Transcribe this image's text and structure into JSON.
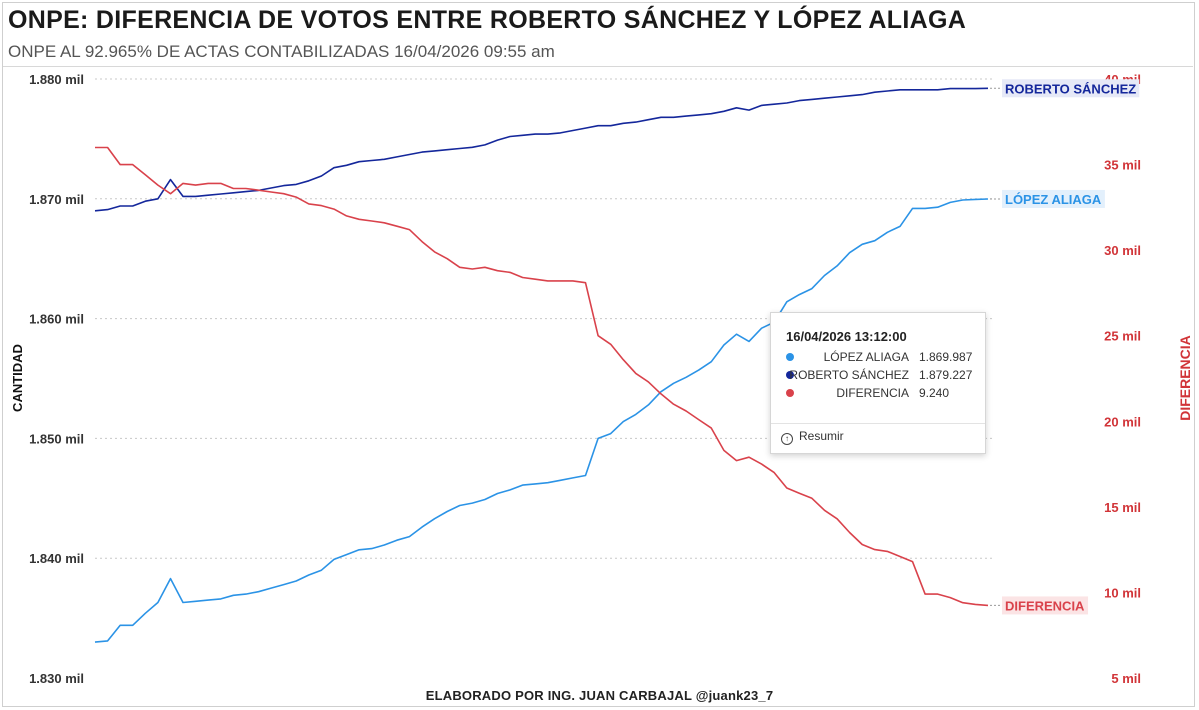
{
  "header": {
    "title": "ONPE: DIFERENCIA DE VOTOS ENTRE ROBERTO SÁNCHEZ Y LÓPEZ ALIAGA",
    "subtitle": "ONPE AL 92.965% DE ACTAS CONTABILIZADAS 16/04/2026 09:55 am"
  },
  "footer": {
    "credit": "ELABORADO POR ING. JUAN CARBAJAL @juank23_7"
  },
  "colors": {
    "sanchez": "#14279b",
    "lopez": "#2b93e6",
    "diferencia": "#d9424b",
    "left_axis": "#333333",
    "right_axis": "#d13438"
  },
  "tooltip": {
    "title": "16/04/2026 13:12:00",
    "rows": [
      {
        "label": "LÓPEZ ALIAGA",
        "value": "1.869.987"
      },
      {
        "label": "ROBERTO SÁNCHEZ",
        "value": "1.879.227"
      },
      {
        "label": "DIFERENCIA",
        "value": "9.240"
      }
    ],
    "action_label": "Resumir"
  },
  "chart_data": {
    "type": "line",
    "title": "ONPE: DIFERENCIA DE VOTOS ENTRE ROBERTO SÁNCHEZ Y LÓPEZ ALIAGA",
    "ylabel": "CANTIDAD",
    "ylabel_right": "DIFERENCIA",
    "ylim": [
      1830000,
      1880000
    ],
    "ylim_right": [
      5000,
      40000
    ],
    "yticks": [
      "1.830 mil",
      "1.840 mil",
      "1.850 mil",
      "1.860 mil",
      "1.870 mil",
      "1.880 mil"
    ],
    "yticks_right": [
      "5 mil",
      "10 mil",
      "15 mil",
      "20 mil",
      "25 mil",
      "30 mil",
      "35 mil",
      "40 mil"
    ],
    "legend_position": "end-of-line labels",
    "series": [
      {
        "name": "ROBERTO SÁNCHEZ",
        "axis": "left",
        "values": [
          1869000,
          1869100,
          1869400,
          1869400,
          1869800,
          1870000,
          1871600,
          1870200,
          1870200,
          1870300,
          1870400,
          1870500,
          1870600,
          1870700,
          1870900,
          1871100,
          1871200,
          1871500,
          1871900,
          1872600,
          1872800,
          1873100,
          1873200,
          1873300,
          1873500,
          1873700,
          1873900,
          1874000,
          1874100,
          1874200,
          1874300,
          1874500,
          1874900,
          1875200,
          1875300,
          1875400,
          1875400,
          1875500,
          1875700,
          1875900,
          1876100,
          1876100,
          1876300,
          1876400,
          1876600,
          1876800,
          1876800,
          1876900,
          1877000,
          1877100,
          1877300,
          1877600,
          1877400,
          1877800,
          1877900,
          1878000,
          1878200,
          1878300,
          1878400,
          1878500,
          1878600,
          1878700,
          1878900,
          1879000,
          1879100,
          1879100,
          1879100,
          1879100,
          1879200,
          1879200,
          1879200,
          1879227
        ]
      },
      {
        "name": "LÓPEZ ALIAGA",
        "axis": "left",
        "values": [
          1833000,
          1833100,
          1834400,
          1834400,
          1835400,
          1836300,
          1838300,
          1836300,
          1836400,
          1836500,
          1836600,
          1836900,
          1837000,
          1837200,
          1837500,
          1837800,
          1838100,
          1838600,
          1839000,
          1839900,
          1840300,
          1840700,
          1840800,
          1841100,
          1841500,
          1841800,
          1842600,
          1843300,
          1843900,
          1844400,
          1844600,
          1844900,
          1845400,
          1845700,
          1846100,
          1846200,
          1846300,
          1846500,
          1846700,
          1846900,
          1850000,
          1850400,
          1851400,
          1852000,
          1852800,
          1853900,
          1854600,
          1855100,
          1855700,
          1856400,
          1857800,
          1858700,
          1858100,
          1859200,
          1859700,
          1861400,
          1862000,
          1862500,
          1863600,
          1864400,
          1865500,
          1866200,
          1866500,
          1867200,
          1867700,
          1869200,
          1869200,
          1869300,
          1869700,
          1869900,
          1869950,
          1869987
        ]
      },
      {
        "name": "DIFERENCIA",
        "axis": "right",
        "values": [
          36000,
          36000,
          35000,
          35000,
          34400,
          33800,
          33300,
          33900,
          33800,
          33900,
          33900,
          33600,
          33600,
          33500,
          33400,
          33300,
          33100,
          32700,
          32600,
          32400,
          32000,
          31800,
          31700,
          31600,
          31400,
          31200,
          30500,
          29900,
          29500,
          29000,
          28900,
          29000,
          28800,
          28700,
          28400,
          28300,
          28200,
          28200,
          28200,
          28100,
          25000,
          24500,
          23600,
          22800,
          22300,
          21600,
          21000,
          20600,
          20100,
          19600,
          18300,
          17700,
          17900,
          17500,
          17000,
          16100,
          15800,
          15500,
          14800,
          14300,
          13500,
          12800,
          12500,
          12400,
          12100,
          11800,
          9900,
          9900,
          9700,
          9400,
          9300,
          9240
        ]
      }
    ]
  }
}
